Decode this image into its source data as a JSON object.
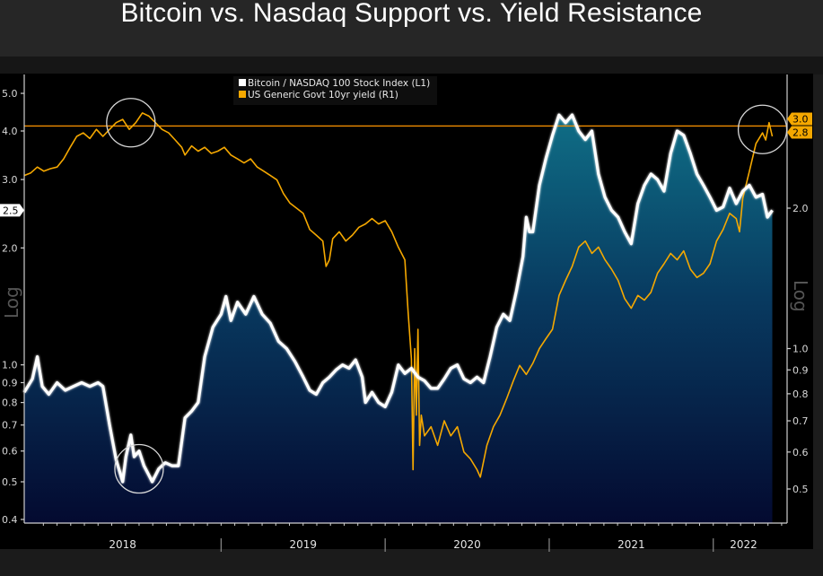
{
  "page": {
    "title": "Bitcoin vs. Nasdaq Support vs. Yield Resistance"
  },
  "chart_data": {
    "type": "area",
    "title": "Bitcoin vs. Nasdaq Support vs. Yield Resistance",
    "x_range": [
      "2017-11",
      "2022-05"
    ],
    "x_tick_labels": [
      "2018",
      "2019",
      "2020",
      "2021",
      "2022"
    ],
    "x_year_bounds": [
      2017.8,
      2019.0,
      2020.0,
      2021.0,
      2022.0,
      2022.37
    ],
    "legend": {
      "placement": "top-center",
      "entries": [
        {
          "label": "Bitcoin / NASDAQ 100 Stock Index (L1)",
          "color": "#ffffff"
        },
        {
          "label": "US Generic Govt 10yr yield (R1)",
          "color": "#f5a800"
        }
      ]
    },
    "left_axis": {
      "scale": "log",
      "title": "Log",
      "ticks": [
        "5.0",
        "4.0",
        "3.0",
        "2.0",
        "1.0",
        "0.9",
        "0.8",
        "0.7",
        "0.6",
        "0.5",
        "0.4"
      ],
      "range": [
        0.4,
        5.5
      ],
      "last_value_label": "2.5"
    },
    "right_axis": {
      "scale": "log",
      "title": "Log",
      "ticks": [
        "2.0",
        "1.0",
        "0.9",
        "0.8",
        "0.7",
        "0.6",
        "0.5"
      ],
      "range": [
        0.42,
        3.6
      ],
      "last_value_labels": [
        "3.0",
        "2.8"
      ]
    },
    "resistance_line": {
      "axis": "right",
      "value": 3.0,
      "color": "#f08c00"
    },
    "series": [
      {
        "name": "Bitcoin / NASDAQ 100 Stock Index (L1)",
        "axis": "left",
        "style": "area",
        "color": "#ffffff",
        "points": [
          [
            2017.8,
            0.85
          ],
          [
            2017.85,
            0.92
          ],
          [
            2017.88,
            1.05
          ],
          [
            2017.91,
            0.88
          ],
          [
            2017.95,
            0.84
          ],
          [
            2018.0,
            0.9
          ],
          [
            2018.05,
            0.86
          ],
          [
            2018.1,
            0.88
          ],
          [
            2018.15,
            0.9
          ],
          [
            2018.2,
            0.88
          ],
          [
            2018.25,
            0.9
          ],
          [
            2018.28,
            0.88
          ],
          [
            2018.32,
            0.7
          ],
          [
            2018.36,
            0.57
          ],
          [
            2018.4,
            0.5
          ],
          [
            2018.42,
            0.58
          ],
          [
            2018.45,
            0.66
          ],
          [
            2018.47,
            0.58
          ],
          [
            2018.5,
            0.6
          ],
          [
            2018.53,
            0.55
          ],
          [
            2018.56,
            0.52
          ],
          [
            2018.58,
            0.5
          ],
          [
            2018.62,
            0.54
          ],
          [
            2018.66,
            0.56
          ],
          [
            2018.7,
            0.55
          ],
          [
            2018.74,
            0.55
          ],
          [
            2018.78,
            0.73
          ],
          [
            2018.82,
            0.76
          ],
          [
            2018.86,
            0.8
          ],
          [
            2018.9,
            1.05
          ],
          [
            2018.95,
            1.25
          ],
          [
            2019.0,
            1.35
          ],
          [
            2019.03,
            1.5
          ],
          [
            2019.06,
            1.3
          ],
          [
            2019.1,
            1.45
          ],
          [
            2019.15,
            1.35
          ],
          [
            2019.2,
            1.5
          ],
          [
            2019.25,
            1.35
          ],
          [
            2019.3,
            1.28
          ],
          [
            2019.35,
            1.15
          ],
          [
            2019.4,
            1.1
          ],
          [
            2019.45,
            1.02
          ],
          [
            2019.5,
            0.93
          ],
          [
            2019.54,
            0.86
          ],
          [
            2019.58,
            0.84
          ],
          [
            2019.62,
            0.9
          ],
          [
            2019.66,
            0.93
          ],
          [
            2019.7,
            0.97
          ],
          [
            2019.74,
            1.0
          ],
          [
            2019.78,
            0.98
          ],
          [
            2019.82,
            1.03
          ],
          [
            2019.86,
            0.93
          ],
          [
            2019.88,
            0.8
          ],
          [
            2019.92,
            0.85
          ],
          [
            2019.96,
            0.8
          ],
          [
            2020.0,
            0.78
          ],
          [
            2020.04,
            0.85
          ],
          [
            2020.08,
            1.0
          ],
          [
            2020.12,
            0.95
          ],
          [
            2020.16,
            0.98
          ],
          [
            2020.2,
            0.93
          ],
          [
            2020.24,
            0.91
          ],
          [
            2020.28,
            0.87
          ],
          [
            2020.32,
            0.87
          ],
          [
            2020.36,
            0.92
          ],
          [
            2020.4,
            0.98
          ],
          [
            2020.44,
            1.0
          ],
          [
            2020.48,
            0.92
          ],
          [
            2020.52,
            0.9
          ],
          [
            2020.56,
            0.93
          ],
          [
            2020.6,
            0.9
          ],
          [
            2020.64,
            1.05
          ],
          [
            2020.68,
            1.25
          ],
          [
            2020.72,
            1.35
          ],
          [
            2020.76,
            1.3
          ],
          [
            2020.8,
            1.55
          ],
          [
            2020.84,
            1.9
          ],
          [
            2020.86,
            2.4
          ],
          [
            2020.88,
            2.2
          ],
          [
            2020.9,
            2.2
          ],
          [
            2020.94,
            2.9
          ],
          [
            2020.98,
            3.4
          ],
          [
            2021.02,
            3.9
          ],
          [
            2021.06,
            4.4
          ],
          [
            2021.1,
            4.2
          ],
          [
            2021.14,
            4.4
          ],
          [
            2021.18,
            4.0
          ],
          [
            2021.22,
            3.8
          ],
          [
            2021.26,
            4.0
          ],
          [
            2021.3,
            3.1
          ],
          [
            2021.34,
            2.7
          ],
          [
            2021.38,
            2.5
          ],
          [
            2021.42,
            2.4
          ],
          [
            2021.46,
            2.2
          ],
          [
            2021.5,
            2.05
          ],
          [
            2021.54,
            2.6
          ],
          [
            2021.58,
            2.9
          ],
          [
            2021.62,
            3.1
          ],
          [
            2021.66,
            3.0
          ],
          [
            2021.7,
            2.8
          ],
          [
            2021.74,
            3.5
          ],
          [
            2021.78,
            4.0
          ],
          [
            2021.82,
            3.9
          ],
          [
            2021.86,
            3.5
          ],
          [
            2021.9,
            3.1
          ],
          [
            2021.94,
            2.9
          ],
          [
            2021.98,
            2.7
          ],
          [
            2022.02,
            2.5
          ],
          [
            2022.06,
            2.55
          ],
          [
            2022.1,
            2.85
          ],
          [
            2022.14,
            2.6
          ],
          [
            2022.18,
            2.8
          ],
          [
            2022.22,
            2.9
          ],
          [
            2022.26,
            2.7
          ],
          [
            2022.3,
            2.75
          ],
          [
            2022.33,
            2.4
          ],
          [
            2022.36,
            2.5
          ]
        ]
      },
      {
        "name": "US Generic Govt 10yr yield (R1)",
        "axis": "right",
        "style": "line",
        "color": "#f5a800",
        "points": [
          [
            2017.8,
            2.35
          ],
          [
            2017.84,
            2.38
          ],
          [
            2017.88,
            2.45
          ],
          [
            2017.92,
            2.4
          ],
          [
            2017.96,
            2.43
          ],
          [
            2018.0,
            2.45
          ],
          [
            2018.04,
            2.55
          ],
          [
            2018.08,
            2.7
          ],
          [
            2018.12,
            2.85
          ],
          [
            2018.16,
            2.9
          ],
          [
            2018.2,
            2.82
          ],
          [
            2018.24,
            2.95
          ],
          [
            2018.28,
            2.85
          ],
          [
            2018.32,
            2.95
          ],
          [
            2018.36,
            3.05
          ],
          [
            2018.4,
            3.1
          ],
          [
            2018.44,
            2.95
          ],
          [
            2018.48,
            3.05
          ],
          [
            2018.52,
            3.2
          ],
          [
            2018.56,
            3.15
          ],
          [
            2018.6,
            3.05
          ],
          [
            2018.64,
            2.95
          ],
          [
            2018.68,
            2.9
          ],
          [
            2018.72,
            2.8
          ],
          [
            2018.76,
            2.7
          ],
          [
            2018.78,
            2.6
          ],
          [
            2018.82,
            2.72
          ],
          [
            2018.86,
            2.65
          ],
          [
            2018.9,
            2.7
          ],
          [
            2018.94,
            2.62
          ],
          [
            2018.98,
            2.65
          ],
          [
            2019.02,
            2.7
          ],
          [
            2019.06,
            2.6
          ],
          [
            2019.1,
            2.55
          ],
          [
            2019.14,
            2.5
          ],
          [
            2019.18,
            2.55
          ],
          [
            2019.22,
            2.45
          ],
          [
            2019.26,
            2.4
          ],
          [
            2019.3,
            2.35
          ],
          [
            2019.34,
            2.3
          ],
          [
            2019.38,
            2.15
          ],
          [
            2019.42,
            2.05
          ],
          [
            2019.46,
            2.0
          ],
          [
            2019.5,
            1.95
          ],
          [
            2019.54,
            1.8
          ],
          [
            2019.58,
            1.75
          ],
          [
            2019.62,
            1.7
          ],
          [
            2019.64,
            1.5
          ],
          [
            2019.66,
            1.55
          ],
          [
            2019.68,
            1.72
          ],
          [
            2019.72,
            1.78
          ],
          [
            2019.76,
            1.7
          ],
          [
            2019.8,
            1.75
          ],
          [
            2019.84,
            1.82
          ],
          [
            2019.88,
            1.85
          ],
          [
            2019.92,
            1.9
          ],
          [
            2019.96,
            1.85
          ],
          [
            2020.0,
            1.88
          ],
          [
            2020.04,
            1.78
          ],
          [
            2020.08,
            1.65
          ],
          [
            2020.12,
            1.55
          ],
          [
            2020.14,
            1.2
          ],
          [
            2020.16,
            0.95
          ],
          [
            2020.17,
            0.55
          ],
          [
            2020.18,
            1.0
          ],
          [
            2020.19,
            0.72
          ],
          [
            2020.2,
            1.1
          ],
          [
            2020.21,
            0.62
          ],
          [
            2020.22,
            0.72
          ],
          [
            2020.24,
            0.65
          ],
          [
            2020.28,
            0.68
          ],
          [
            2020.32,
            0.62
          ],
          [
            2020.36,
            0.7
          ],
          [
            2020.4,
            0.65
          ],
          [
            2020.44,
            0.68
          ],
          [
            2020.48,
            0.6
          ],
          [
            2020.52,
            0.58
          ],
          [
            2020.56,
            0.55
          ],
          [
            2020.58,
            0.53
          ],
          [
            2020.62,
            0.62
          ],
          [
            2020.66,
            0.68
          ],
          [
            2020.7,
            0.72
          ],
          [
            2020.74,
            0.78
          ],
          [
            2020.78,
            0.85
          ],
          [
            2020.82,
            0.92
          ],
          [
            2020.86,
            0.88
          ],
          [
            2020.9,
            0.93
          ],
          [
            2020.94,
            1.0
          ],
          [
            2020.98,
            1.05
          ],
          [
            2021.02,
            1.1
          ],
          [
            2021.06,
            1.3
          ],
          [
            2021.1,
            1.4
          ],
          [
            2021.14,
            1.5
          ],
          [
            2021.18,
            1.65
          ],
          [
            2021.22,
            1.7
          ],
          [
            2021.26,
            1.6
          ],
          [
            2021.3,
            1.65
          ],
          [
            2021.34,
            1.55
          ],
          [
            2021.38,
            1.48
          ],
          [
            2021.42,
            1.4
          ],
          [
            2021.46,
            1.28
          ],
          [
            2021.5,
            1.22
          ],
          [
            2021.54,
            1.3
          ],
          [
            2021.58,
            1.27
          ],
          [
            2021.62,
            1.32
          ],
          [
            2021.66,
            1.45
          ],
          [
            2021.7,
            1.52
          ],
          [
            2021.74,
            1.6
          ],
          [
            2021.78,
            1.55
          ],
          [
            2021.82,
            1.62
          ],
          [
            2021.86,
            1.48
          ],
          [
            2021.9,
            1.42
          ],
          [
            2021.94,
            1.45
          ],
          [
            2021.98,
            1.52
          ],
          [
            2022.02,
            1.7
          ],
          [
            2022.06,
            1.8
          ],
          [
            2022.1,
            1.95
          ],
          [
            2022.14,
            1.9
          ],
          [
            2022.16,
            1.78
          ],
          [
            2022.18,
            2.1
          ],
          [
            2022.22,
            2.4
          ],
          [
            2022.26,
            2.75
          ],
          [
            2022.3,
            2.9
          ],
          [
            2022.32,
            2.8
          ],
          [
            2022.34,
            3.05
          ],
          [
            2022.36,
            2.85
          ]
        ]
      }
    ],
    "annotations": [
      {
        "type": "circle",
        "label": "yield top 2018",
        "at": [
          2018.45,
          3.05
        ],
        "axis": "right"
      },
      {
        "type": "circle",
        "label": "bitcoin/nasdaq low 2018",
        "at": [
          2018.5,
          0.54
        ],
        "axis": "left"
      },
      {
        "type": "circle",
        "label": "yield 2022 at resistance",
        "at": [
          2022.3,
          2.95
        ],
        "axis": "right"
      }
    ]
  }
}
